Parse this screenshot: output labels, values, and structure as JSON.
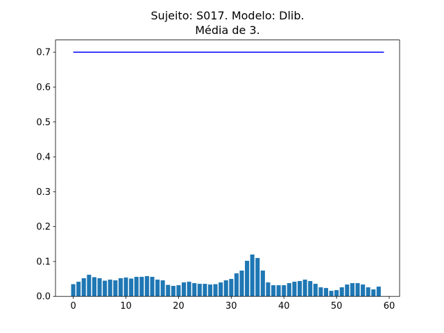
{
  "chart_data": {
    "type": "bar",
    "title": [
      "Sujeito: S017. Modelo: Dlib.",
      "Média de 3."
    ],
    "x": [
      0,
      1,
      2,
      3,
      4,
      5,
      6,
      7,
      8,
      9,
      10,
      11,
      12,
      13,
      14,
      15,
      16,
      17,
      18,
      19,
      20,
      21,
      22,
      23,
      24,
      25,
      26,
      27,
      28,
      29,
      30,
      31,
      32,
      33,
      34,
      35,
      36,
      37,
      38,
      39,
      40,
      41,
      42,
      43,
      44,
      45,
      46,
      47,
      48,
      49,
      50,
      51,
      52,
      53,
      54,
      55,
      56,
      57,
      58
    ],
    "values": [
      0.035,
      0.042,
      0.052,
      0.062,
      0.055,
      0.052,
      0.045,
      0.048,
      0.046,
      0.052,
      0.054,
      0.051,
      0.056,
      0.056,
      0.058,
      0.056,
      0.048,
      0.046,
      0.033,
      0.03,
      0.032,
      0.04,
      0.042,
      0.038,
      0.036,
      0.036,
      0.034,
      0.035,
      0.04,
      0.046,
      0.05,
      0.066,
      0.074,
      0.102,
      0.12,
      0.11,
      0.074,
      0.04,
      0.032,
      0.032,
      0.032,
      0.038,
      0.042,
      0.044,
      0.048,
      0.044,
      0.036,
      0.026,
      0.024,
      0.016,
      0.018,
      0.026,
      0.034,
      0.038,
      0.038,
      0.034,
      0.026,
      0.02,
      0.028
    ],
    "color": "#1f77b4",
    "line": {
      "type": "line",
      "x": [
        0,
        59
      ],
      "values": [
        0.7,
        0.7
      ],
      "color": "#0000ff"
    },
    "xlim": [
      -3.37,
      61.97
    ],
    "xticks": [
      0,
      10,
      20,
      30,
      40,
      50,
      60
    ],
    "ylim": [
      0,
      0.735
    ],
    "yticks": [
      {
        "value": 0,
        "label": "0.0"
      },
      0.1,
      0.2,
      0.3,
      0.4,
      0.5,
      0.6,
      0.7
    ]
  }
}
